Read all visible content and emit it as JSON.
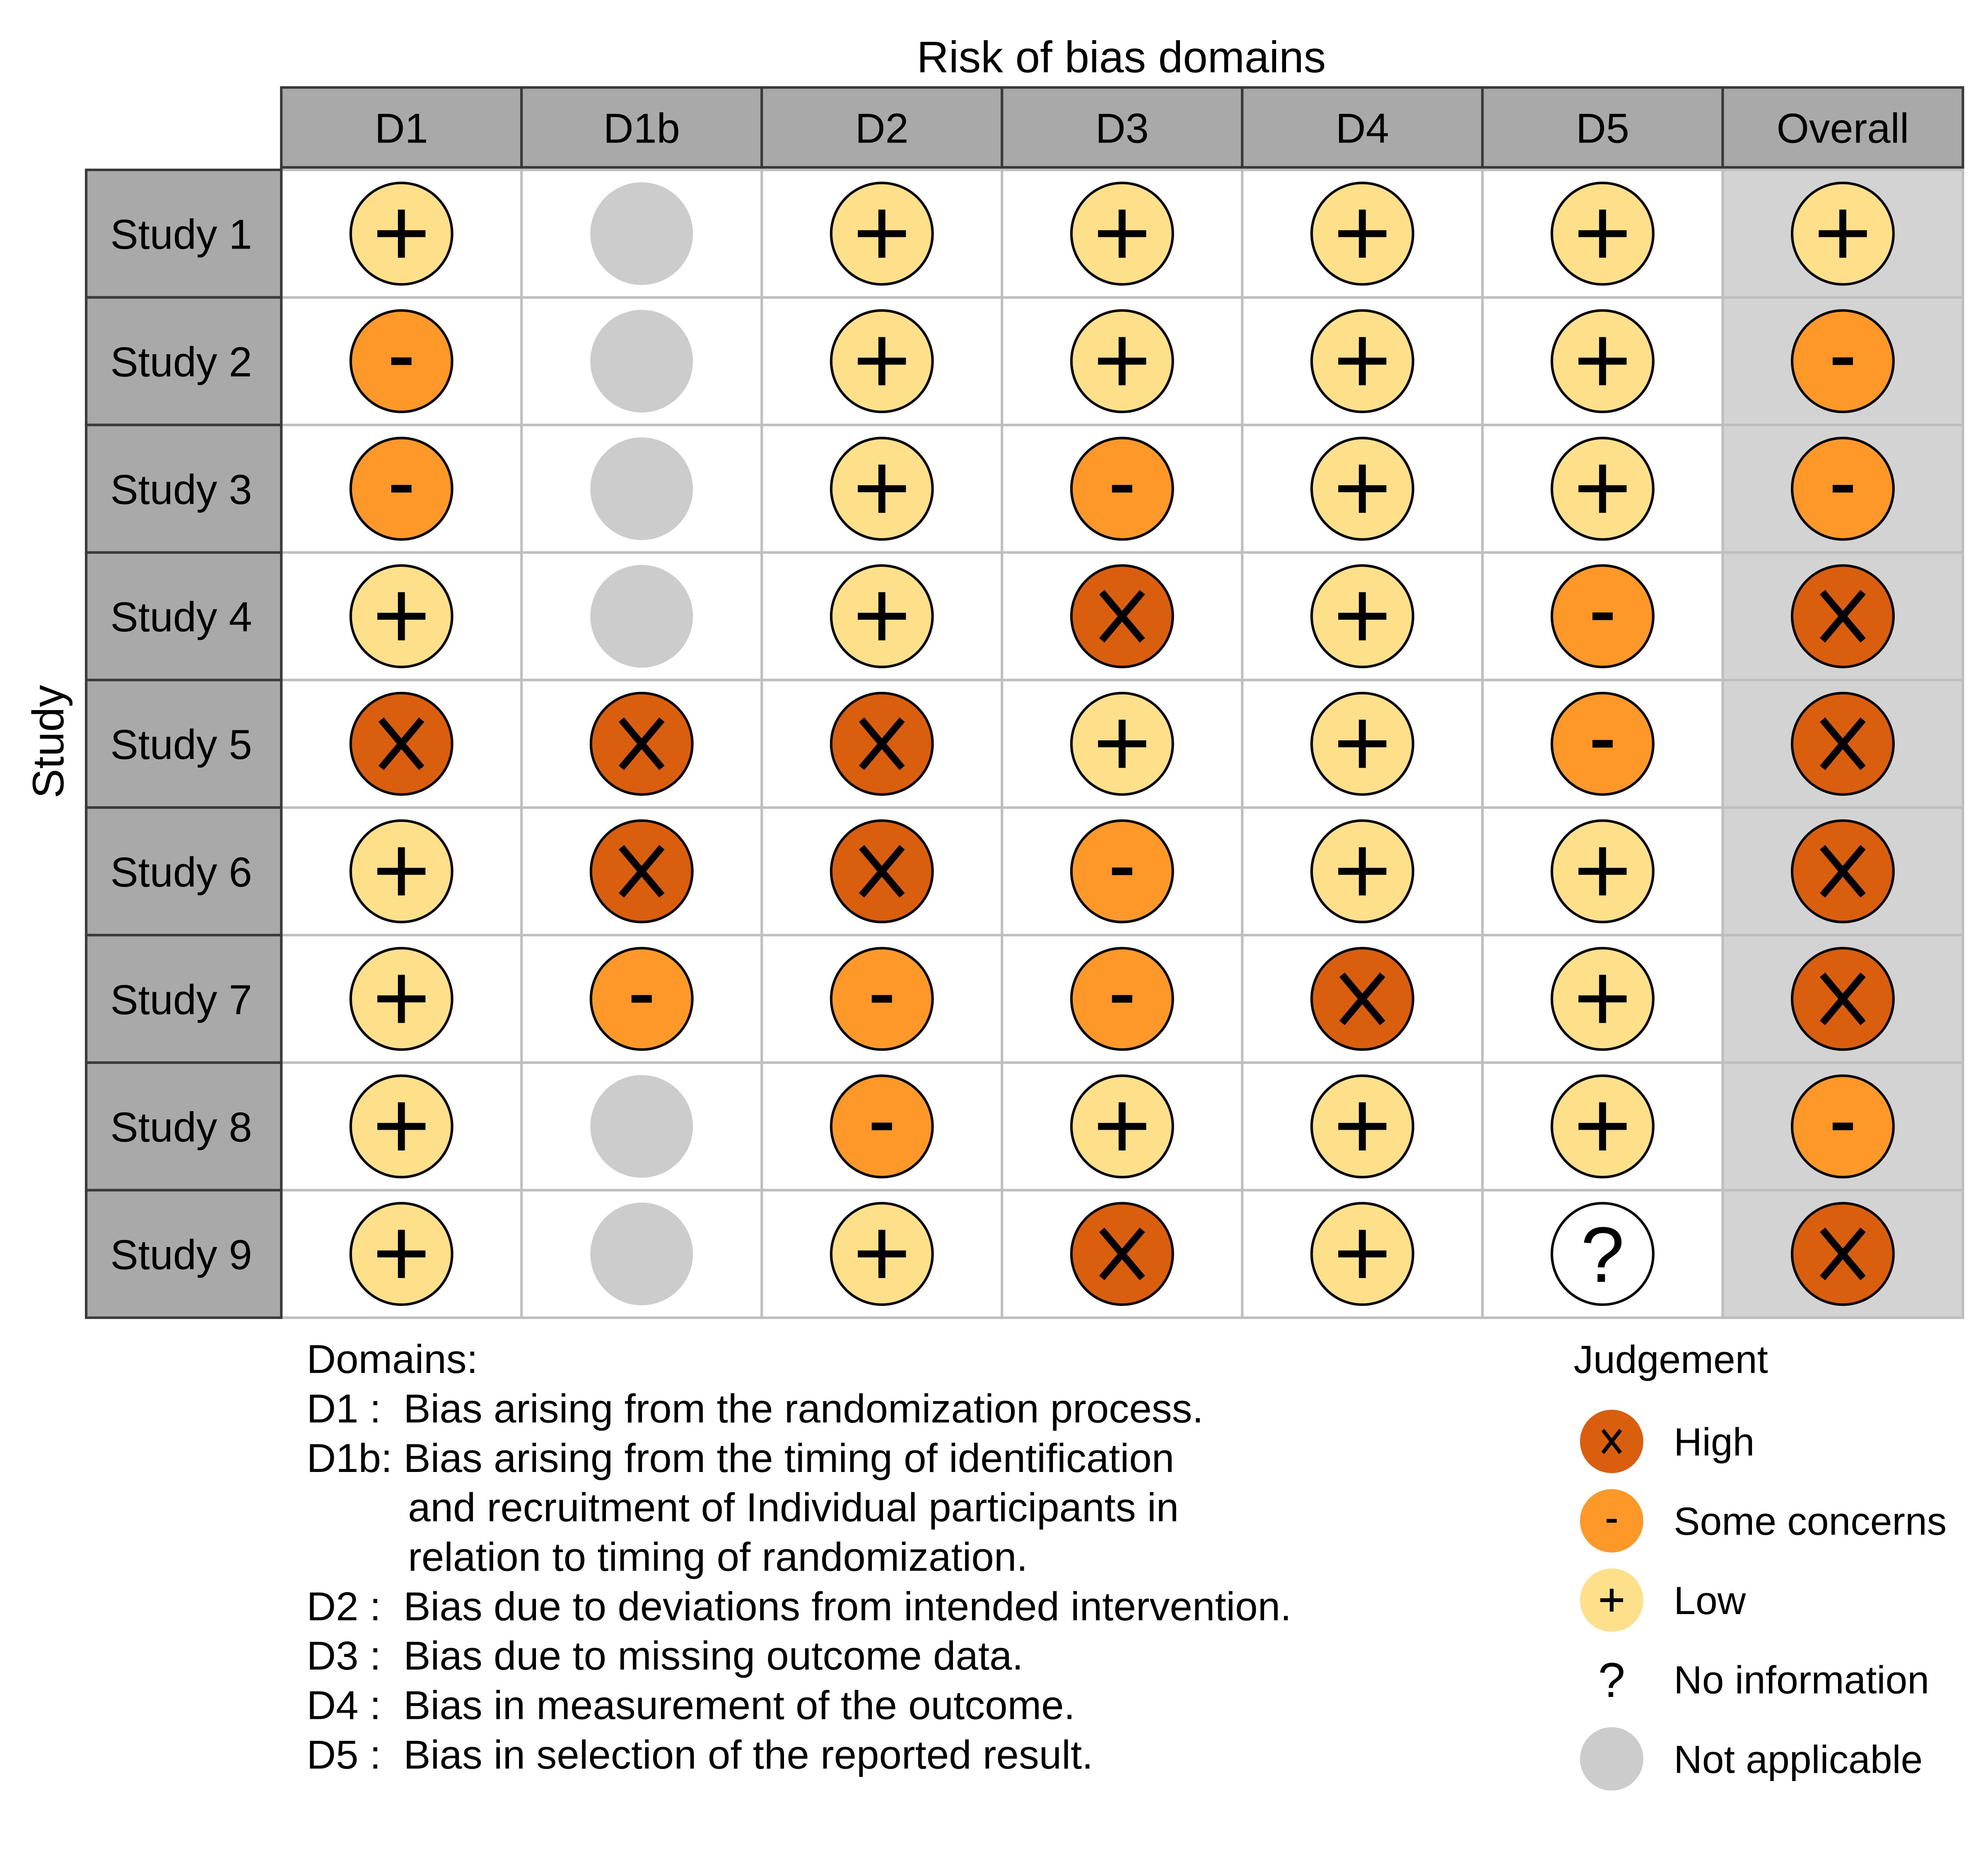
{
  "chart_data": {
    "type": "table",
    "title": "Risk of bias domains",
    "row_axis_label": "Study",
    "columns": [
      "D1",
      "D1b",
      "D2",
      "D3",
      "D4",
      "D5",
      "Overall"
    ],
    "studies": [
      "Study 1",
      "Study 2",
      "Study 3",
      "Study 4",
      "Study 5",
      "Study 6",
      "Study 7",
      "Study 8",
      "Study 9"
    ],
    "judgements": [
      [
        "Low",
        "Not applicable",
        "Low",
        "Low",
        "Low",
        "Low",
        "Low"
      ],
      [
        "Some concerns",
        "Not applicable",
        "Low",
        "Low",
        "Low",
        "Low",
        "Some concerns"
      ],
      [
        "Some concerns",
        "Not applicable",
        "Low",
        "Some concerns",
        "Low",
        "Low",
        "Some concerns"
      ],
      [
        "Low",
        "Not applicable",
        "Low",
        "High",
        "Low",
        "Some concerns",
        "High"
      ],
      [
        "High",
        "High",
        "High",
        "Low",
        "Low",
        "Some concerns",
        "High"
      ],
      [
        "Low",
        "High",
        "High",
        "Some concerns",
        "Low",
        "Low",
        "High"
      ],
      [
        "Low",
        "Some concerns",
        "Some concerns",
        "Some concerns",
        "High",
        "Low",
        "High"
      ],
      [
        "Low",
        "Not applicable",
        "Some concerns",
        "Low",
        "Low",
        "Low",
        "Some concerns"
      ],
      [
        "Low",
        "Not applicable",
        "Low",
        "High",
        "Low",
        "No information",
        "High"
      ]
    ],
    "symbols": {
      "High": "X",
      "Some concerns": "-",
      "Low": "+",
      "No information": "?",
      "Not applicable": ""
    },
    "colors": {
      "High": "#D95F0E",
      "Some concerns": "#FE9929",
      "Low": "#FEE08B",
      "No information": "#FFFFFF",
      "Not applicable": "#CCCCCC",
      "header_fill": "#A9A9A9",
      "overall_column_fill": "#D3D3D3",
      "grid_line": "#BEBEBE"
    },
    "legend": {
      "title": "Judgement",
      "position": "bottom-right",
      "items": [
        {
          "label": "High",
          "symbol": "x",
          "judgement": "High"
        },
        {
          "label": "Some concerns",
          "symbol": "-",
          "judgement": "Some concerns"
        },
        {
          "label": "Low",
          "symbol": "+",
          "judgement": "Low"
        },
        {
          "label": "No information",
          "symbol": "?",
          "judgement": "No information"
        },
        {
          "label": "Not applicable",
          "symbol": "",
          "judgement": "Not applicable"
        }
      ]
    },
    "domains_title": "Domains:",
    "domain_notes": [
      "D1 :  Bias arising from the randomization process.",
      "D1b: Bias arising from the timing of identification",
      "         and recruitment of Individual participants in",
      "         relation to timing of randomization.",
      "D2 :  Bias due to deviations from intended intervention.",
      "D3 :  Bias due to missing outcome data.",
      "D4 :  Bias in measurement of the outcome.",
      "D5 :  Bias in selection of the reported result."
    ]
  }
}
